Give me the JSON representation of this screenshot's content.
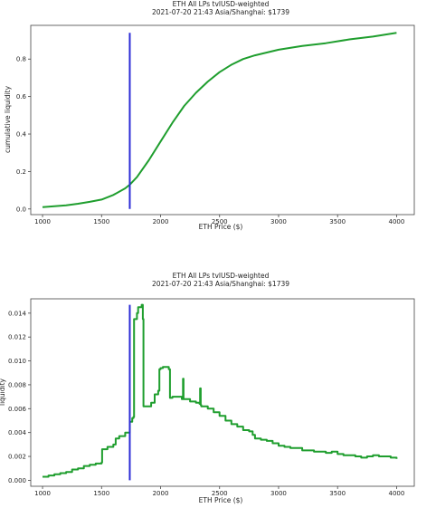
{
  "chart_data": [
    {
      "type": "line",
      "title": "ETH All LPs tvlUSD-weighted",
      "subtitle": "2021-07-20 21:43 Asia/Shanghai: $1739",
      "xlabel": "ETH Price ($)",
      "ylabel": "cumulative liquidity",
      "xlim": [
        900,
        4150
      ],
      "ylim": [
        -0.03,
        0.98
      ],
      "xticks": [
        1000,
        1500,
        2000,
        2500,
        3000,
        3500,
        4000
      ],
      "yticks": [
        0.0,
        0.2,
        0.4,
        0.6,
        0.8
      ],
      "ytick_labels": [
        "0.0",
        "0.2",
        "0.4",
        "0.6",
        "0.8"
      ],
      "grid": false,
      "current_price_line": {
        "x": 1739,
        "y_range": [
          0.0,
          0.94
        ],
        "color": "#2b2bd6"
      },
      "series": [
        {
          "color": "#1f9e2e",
          "x": [
            1000,
            1100,
            1200,
            1300,
            1400,
            1500,
            1600,
            1700,
            1739,
            1800,
            1900,
            2000,
            2100,
            2200,
            2300,
            2400,
            2500,
            2600,
            2700,
            2800,
            3000,
            3200,
            3400,
            3600,
            3800,
            4000
          ],
          "y": [
            0.01,
            0.015,
            0.02,
            0.028,
            0.038,
            0.05,
            0.075,
            0.11,
            0.13,
            0.17,
            0.26,
            0.36,
            0.46,
            0.55,
            0.62,
            0.68,
            0.73,
            0.77,
            0.8,
            0.82,
            0.85,
            0.87,
            0.885,
            0.905,
            0.92,
            0.94
          ]
        }
      ]
    },
    {
      "type": "line",
      "title": "ETH All LPs tvlUSD-weighted",
      "subtitle": "2021-07-20 21:43 Asia/Shanghai: $1739",
      "xlabel": "ETH Price ($)",
      "ylabel": "liquidity",
      "xlim": [
        900,
        4150
      ],
      "ylim": [
        -0.0005,
        0.0152
      ],
      "xticks": [
        1000,
        1500,
        2000,
        2500,
        3000,
        3500,
        4000
      ],
      "yticks": [
        0.0,
        0.002,
        0.004,
        0.006,
        0.008,
        0.01,
        0.012,
        0.014
      ],
      "ytick_labels": [
        "0.000",
        "0.002",
        "0.004",
        "0.006",
        "0.008",
        "0.010",
        "0.012",
        "0.014"
      ],
      "grid": false,
      "current_price_line": {
        "x": 1739,
        "y_range": [
          0.0,
          0.0147
        ],
        "color": "#2b2bd6"
      },
      "series": [
        {
          "color": "#1f9e2e",
          "x": [
            1000,
            1050,
            1100,
            1150,
            1200,
            1250,
            1300,
            1350,
            1400,
            1450,
            1500,
            1505,
            1550,
            1600,
            1620,
            1650,
            1700,
            1739,
            1760,
            1770,
            1775,
            1800,
            1810,
            1840,
            1850,
            1855,
            1900,
            1920,
            1950,
            1980,
            1990,
            2000,
            2020,
            2050,
            2070,
            2080,
            2100,
            2150,
            2180,
            2190,
            2195,
            2200,
            2250,
            2300,
            2330,
            2335,
            2340,
            2345,
            2400,
            2450,
            2500,
            2550,
            2600,
            2650,
            2700,
            2750,
            2780,
            2800,
            2850,
            2900,
            2950,
            3000,
            3050,
            3100,
            3200,
            3300,
            3400,
            3450,
            3500,
            3550,
            3600,
            3650,
            3700,
            3750,
            3800,
            3850,
            3900,
            3950,
            4000
          ],
          "y": [
            0.0003,
            0.0004,
            0.0005,
            0.0006,
            0.0007,
            0.0009,
            0.001,
            0.0012,
            0.0013,
            0.0014,
            0.0015,
            0.0026,
            0.0028,
            0.003,
            0.0035,
            0.0037,
            0.004,
            0.0049,
            0.0052,
            0.0053,
            0.0135,
            0.014,
            0.0145,
            0.0147,
            0.0135,
            0.0062,
            0.0062,
            0.0065,
            0.0072,
            0.0075,
            0.0093,
            0.0094,
            0.0095,
            0.0095,
            0.0093,
            0.0069,
            0.007,
            0.007,
            0.0068,
            0.0085,
            0.0068,
            0.0068,
            0.0066,
            0.0065,
            0.0064,
            0.0077,
            0.0063,
            0.0062,
            0.006,
            0.0057,
            0.0054,
            0.005,
            0.0047,
            0.0045,
            0.0042,
            0.0041,
            0.0038,
            0.0035,
            0.0034,
            0.0033,
            0.0031,
            0.0029,
            0.0028,
            0.0027,
            0.0025,
            0.0024,
            0.0023,
            0.0024,
            0.0022,
            0.0021,
            0.0021,
            0.002,
            0.0019,
            0.002,
            0.0021,
            0.002,
            0.002,
            0.0019,
            0.0018
          ]
        }
      ]
    }
  ]
}
